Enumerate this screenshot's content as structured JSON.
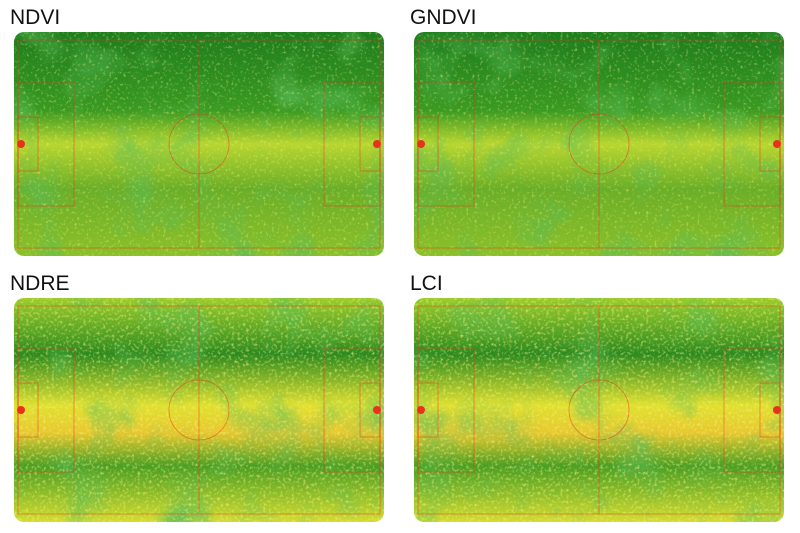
{
  "panels": [
    {
      "title": "NDVI",
      "style": "green"
    },
    {
      "title": "GNDVI",
      "style": "green"
    },
    {
      "title": "NDRE",
      "style": "yellow"
    },
    {
      "title": "LCI",
      "style": "yellow"
    }
  ],
  "colors": {
    "low": "#e8321e",
    "mid": "#e6e632",
    "high": "#1e7d1e"
  }
}
